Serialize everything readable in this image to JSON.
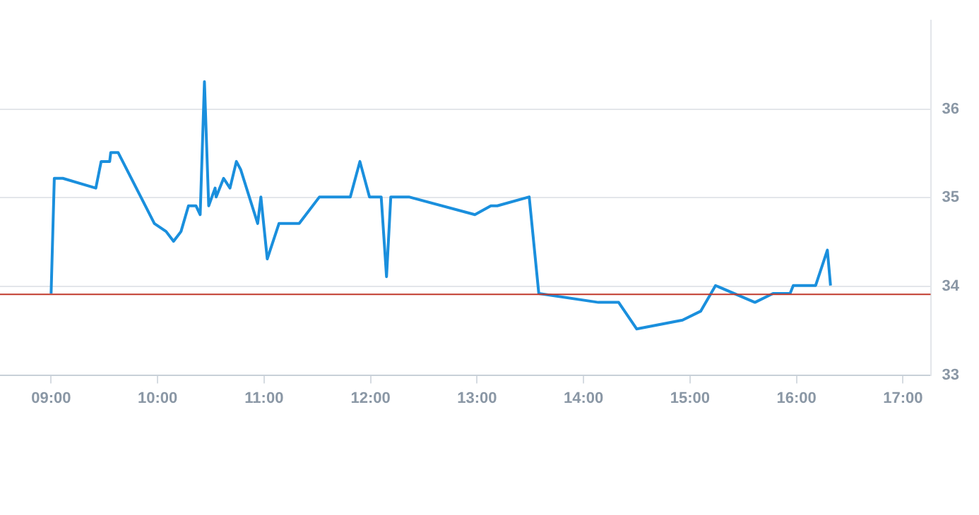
{
  "chart_data": {
    "type": "line",
    "x": [
      9.0,
      9.03,
      9.11,
      9.42,
      9.47,
      9.55,
      9.56,
      9.63,
      9.97,
      10.08,
      10.15,
      10.22,
      10.29,
      10.36,
      10.4,
      10.44,
      10.48,
      10.54,
      10.55,
      10.62,
      10.68,
      10.74,
      10.78,
      10.94,
      10.97,
      11.03,
      11.14,
      11.33,
      11.52,
      11.81,
      11.9,
      11.99,
      12.1,
      12.15,
      12.19,
      12.36,
      12.98,
      13.13,
      13.19,
      13.49,
      13.58,
      14.14,
      14.33,
      14.5,
      14.93,
      15.1,
      15.24,
      15.61,
      15.78,
      15.94,
      15.97,
      16.18,
      16.29,
      16.32
    ],
    "series": [
      {
        "color": "#1a8fdd",
        "values": [
          33.92,
          35.22,
          35.22,
          35.11,
          35.41,
          35.41,
          35.51,
          35.51,
          34.71,
          34.62,
          34.51,
          34.62,
          34.91,
          34.91,
          34.81,
          36.31,
          34.91,
          35.11,
          35.01,
          35.22,
          35.11,
          35.41,
          35.32,
          34.71,
          35.01,
          34.31,
          34.71,
          34.71,
          35.01,
          35.01,
          35.41,
          35.01,
          35.01,
          34.11,
          35.01,
          35.01,
          34.81,
          34.91,
          34.91,
          35.01,
          33.92,
          33.82,
          33.82,
          33.52,
          33.62,
          33.72,
          34.01,
          33.82,
          33.92,
          33.92,
          34.01,
          34.01,
          34.41,
          34.01
        ]
      }
    ],
    "xlim": [
      8.52,
      17.26
    ],
    "xticks": [
      {
        "value": 9,
        "label": "09:00"
      },
      {
        "value": 10,
        "label": "10:00"
      },
      {
        "value": 11,
        "label": "11:00"
      },
      {
        "value": 12,
        "label": "12:00"
      },
      {
        "value": 13,
        "label": "13:00"
      },
      {
        "value": 14,
        "label": "14:00"
      },
      {
        "value": 15,
        "label": "15:00"
      },
      {
        "value": 16,
        "label": "16:00"
      },
      {
        "value": 17,
        "label": "17:00"
      }
    ],
    "ylim": [
      33,
      37
    ],
    "yticks": [
      33,
      34,
      35,
      36
    ],
    "ref_lines": [
      {
        "axis": "y",
        "value": 33.91,
        "color": "#c0392b"
      }
    ],
    "grid": "y",
    "legend": false,
    "marker": "none",
    "line_style": "solid"
  }
}
